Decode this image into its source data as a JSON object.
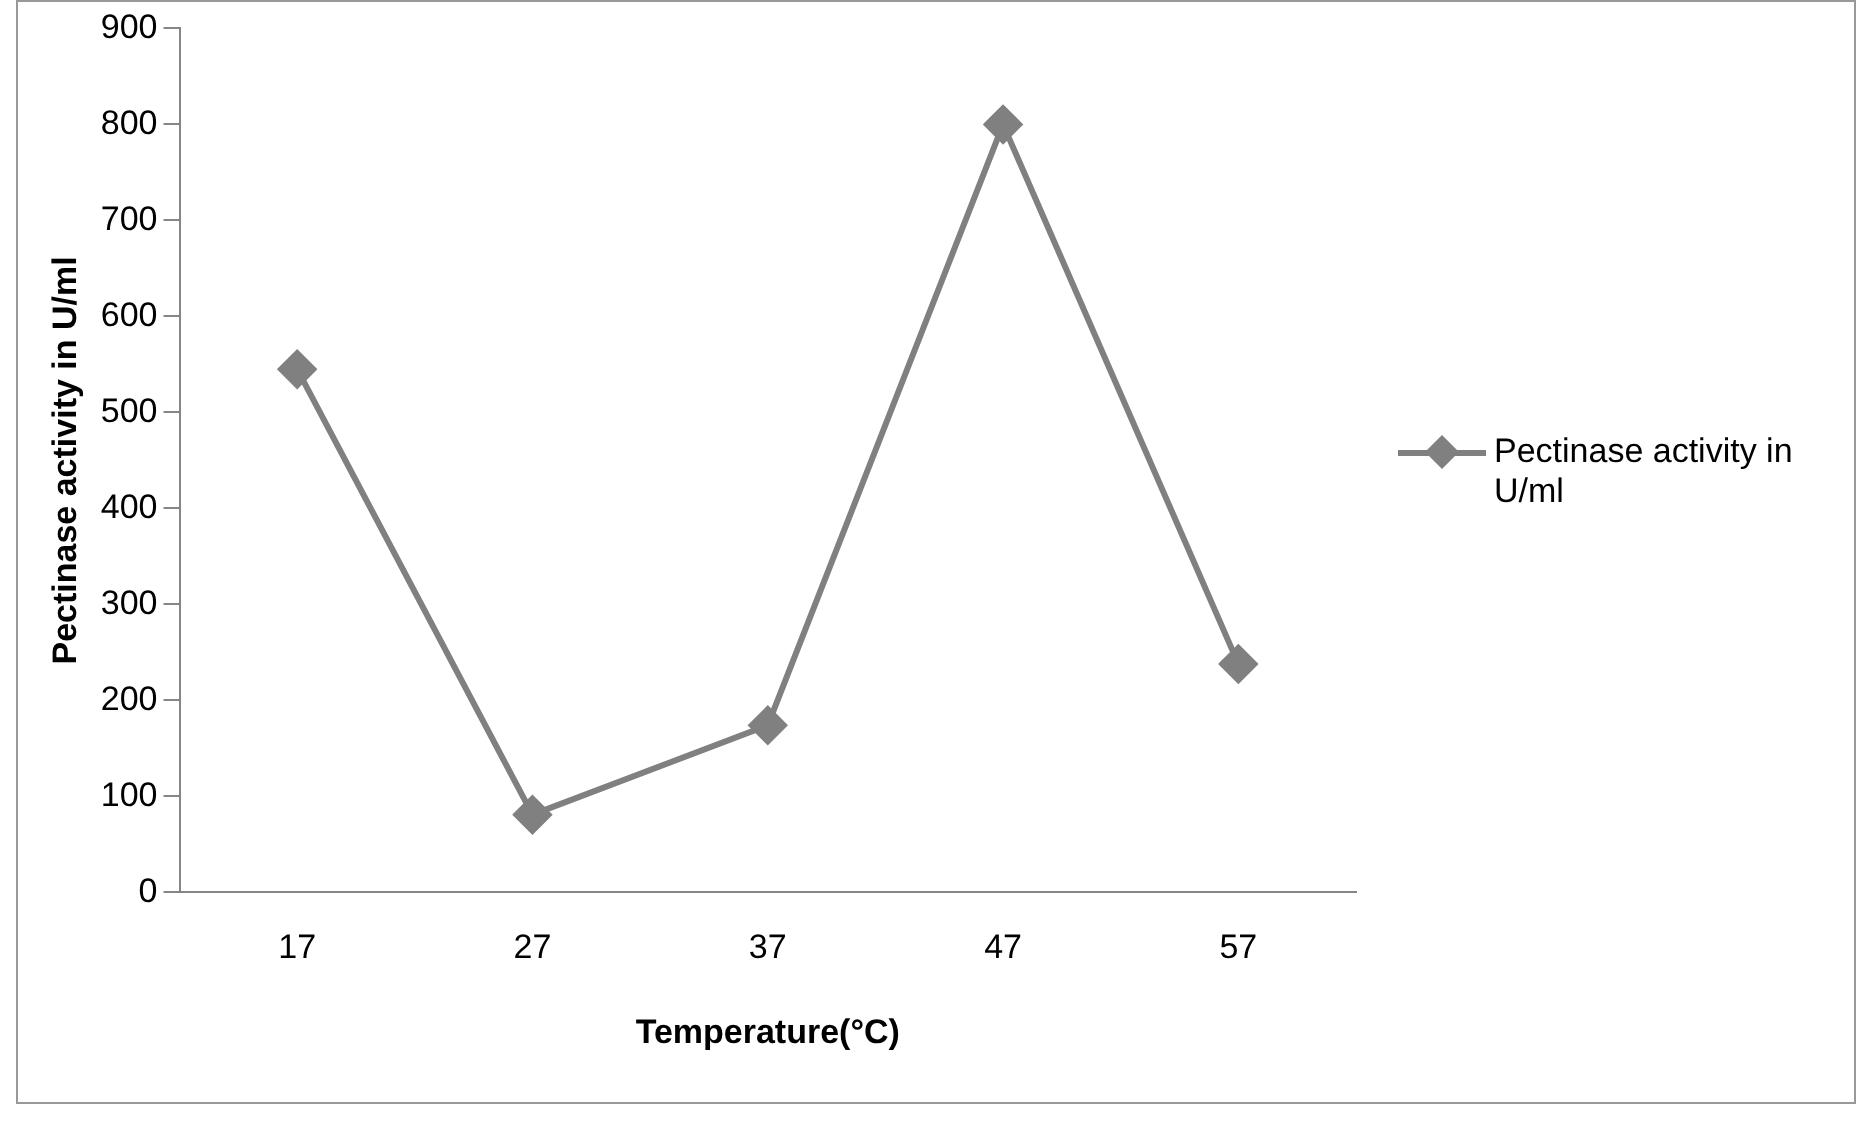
{
  "chart_data": {
    "type": "line",
    "xlabel": "Temperature(°C)",
    "ylabel": "Pectinase activity in U/ml",
    "categories": [
      "17",
      "27",
      "37",
      "47",
      "57"
    ],
    "series": [
      {
        "name": "Pectinase activity in U/ml",
        "color": "#808080",
        "values": [
          545,
          81,
          174,
          800,
          238
        ]
      }
    ],
    "ylim": [
      0,
      900
    ],
    "yticks": [
      0,
      100,
      200,
      300,
      400,
      500,
      600,
      700,
      800,
      900
    ],
    "grid": false,
    "legend": "right",
    "marker": "diamond",
    "line_style": "solid"
  }
}
